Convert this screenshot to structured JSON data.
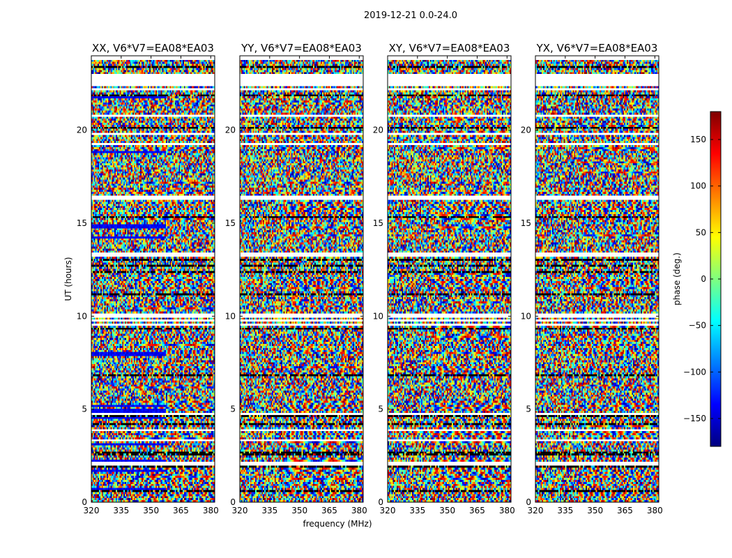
{
  "chart_data": {
    "type": "heatmap",
    "suptitle": "2019-12-21 0.0-24.0",
    "xlabel": "frequency (MHz)",
    "ylabel": "UT (hours)",
    "xlim": [
      320,
      382
    ],
    "ylim": [
      0,
      24
    ],
    "xticks": [
      320,
      335,
      350,
      365,
      380
    ],
    "yticks": [
      0,
      5,
      10,
      15,
      20
    ],
    "panels": [
      {
        "title": "XX, V6*V7=EA08*EA03"
      },
      {
        "title": "YY, V6*V7=EA08*EA03"
      },
      {
        "title": "XY, V6*V7=EA08*EA03"
      },
      {
        "title": "YX, V6*V7=EA08*EA03"
      }
    ],
    "colorbar": {
      "label": "phase (deg.)",
      "range": [
        -180,
        180
      ],
      "ticks": [
        150,
        100,
        50,
        0,
        -50,
        -100,
        -150
      ],
      "colormap": "jet",
      "colors": [
        "#00007f",
        "#0000ff",
        "#007fff",
        "#00ffff",
        "#7fff7f",
        "#ffff00",
        "#ff7f00",
        "#ff0000",
        "#7f0000"
      ]
    },
    "flagged_time_ranges_hours": [
      [
        1.0,
        1.6
      ],
      [
        7.5,
        7.8
      ],
      [
        3.2,
        3.3
      ],
      [
        13.8,
        14.1
      ],
      [
        10.6,
        10.8
      ],
      [
        21.8,
        22.0
      ]
    ],
    "value_description": "cross-correlation phase vs frequency and UT; values span -180 to 180 deg"
  }
}
